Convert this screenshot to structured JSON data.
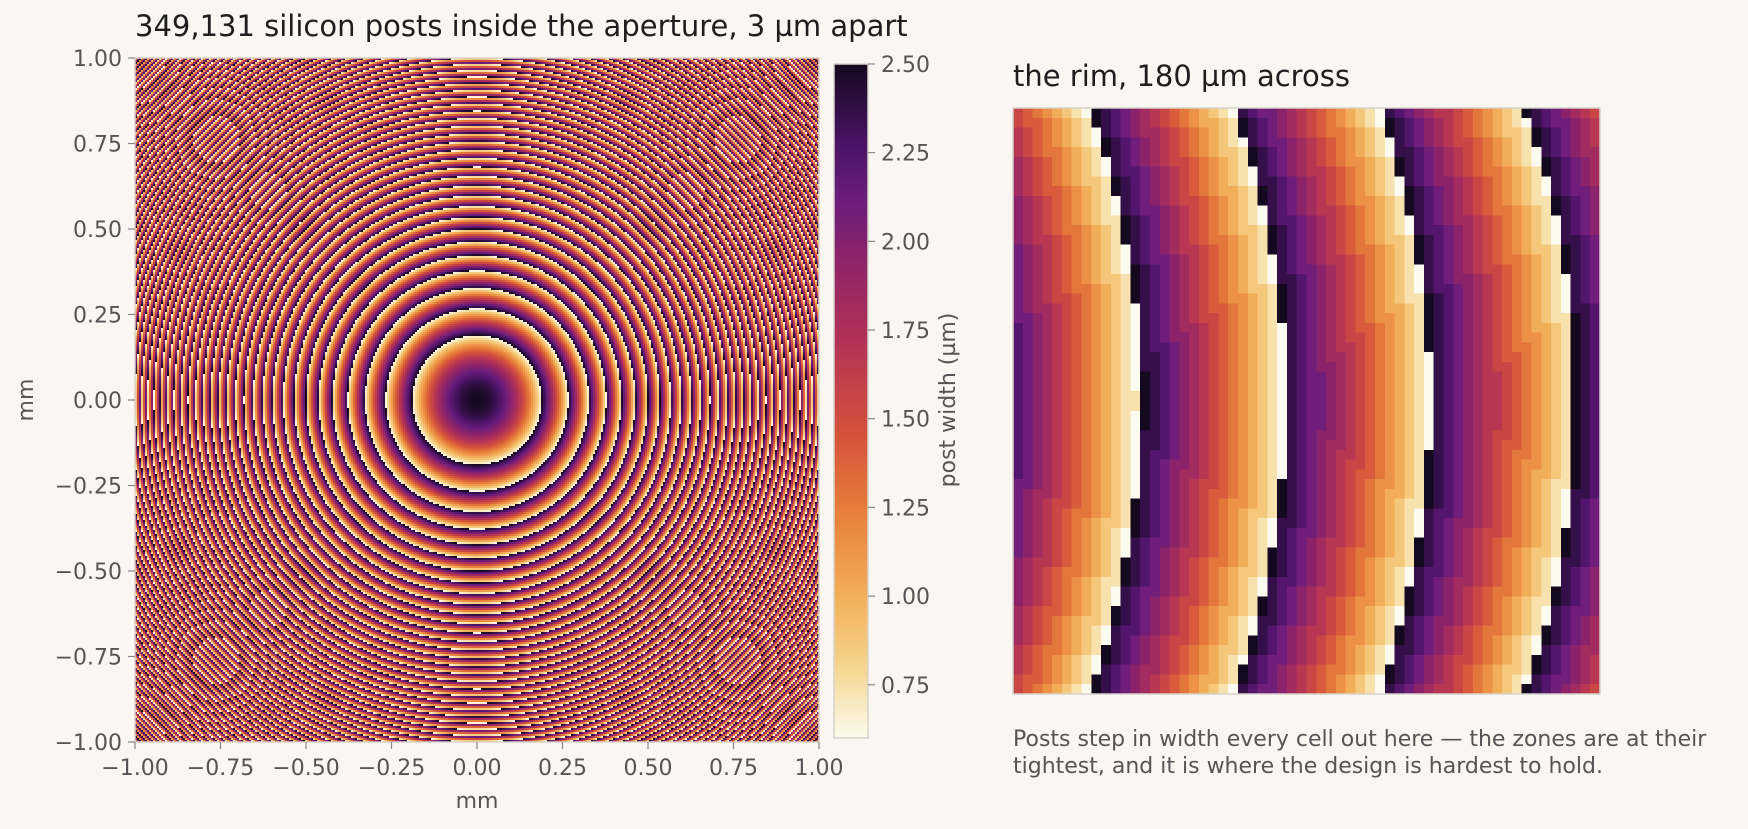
{
  "chart_data": [
    {
      "type": "heatmap",
      "title": "349,131 silicon posts inside the aperture, 3 µm apart",
      "xlabel": "mm",
      "ylabel": "mm",
      "xlim": [
        -1.0,
        1.0
      ],
      "ylim": [
        -1.0,
        1.0
      ],
      "x_ticks": [
        "−1.00",
        "−0.75",
        "−0.50",
        "−0.25",
        "0.00",
        "0.25",
        "0.50",
        "0.75",
        "1.00"
      ],
      "y_ticks": [
        "1.00",
        "0.75",
        "0.50",
        "0.25",
        "0.00",
        "−0.25",
        "−0.50",
        "−0.75",
        "−1.00"
      ],
      "x_tick_values": [
        -1.0,
        -0.75,
        -0.5,
        -0.25,
        0.0,
        0.25,
        0.5,
        0.75,
        1.0
      ],
      "y_tick_values": [
        1.0,
        0.75,
        0.5,
        0.25,
        0.0,
        -0.25,
        -0.5,
        -0.75,
        -1.0
      ],
      "colormap": "inferno (reversed)",
      "colorbar": {
        "label": "post width  (µm)",
        "range": [
          0.6,
          2.5
        ],
        "ticks": [
          "2.50",
          "2.25",
          "2.00",
          "1.75",
          "1.50",
          "1.25",
          "1.00",
          "0.75"
        ],
        "tick_values": [
          2.5,
          2.25,
          2.0,
          1.75,
          1.5,
          1.25,
          1.0,
          0.75
        ]
      },
      "pattern": "concentric zone rings centered at (0.00, 0.00); post width cycles from about 0.6 µm to 2.5 µm within each zone; zones narrow with radius"
    },
    {
      "type": "heatmap",
      "title": "the rim, 180 µm across",
      "pattern": "magnified rim region: vertical bands of post width stepping every cell, about 4 zones across, dark (wide posts) to pale (narrow posts)",
      "value_range": [
        0.6,
        2.5
      ]
    }
  ],
  "caption": "Posts step in width every cell out here — the zones are at their tightest, and it is where the design is hardest to hold.",
  "colors": {
    "background": "#faf7f2",
    "frame": "#d6d2cb",
    "text": "#1e1e1e",
    "tick_text": "#555555"
  }
}
